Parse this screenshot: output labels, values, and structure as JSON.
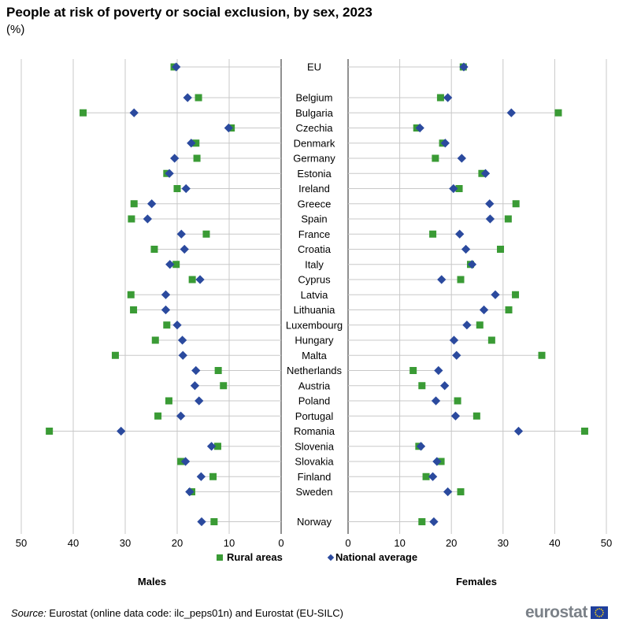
{
  "title": "People at risk of poverty or social exclusion, by sex, 2023",
  "subtitle": "(%)",
  "source": {
    "label": "Source:",
    "text": " Eurostat (online data code: ilc_peps01n) and Eurostat (EU-SILC)"
  },
  "logo": {
    "text": "eurostat"
  },
  "colors": {
    "rural": "#3a9b35",
    "national": "#2b4a9e",
    "grid": "#c8c8c8",
    "divider": "#555555"
  },
  "chart_data": {
    "type": "scatter",
    "legend": {
      "rural": "Rural areas",
      "national": "National average"
    },
    "panels": [
      {
        "key": "males",
        "label": "Males",
        "xlim": [
          0,
          50
        ],
        "direction": "reversed",
        "ticks": [
          50,
          40,
          30,
          20,
          10,
          0
        ]
      },
      {
        "key": "females",
        "label": "Females",
        "xlim": [
          0,
          50
        ],
        "direction": "normal",
        "ticks": [
          0,
          10,
          20,
          30,
          40,
          50
        ]
      }
    ],
    "countries": [
      {
        "name": "EU",
        "gap_after": true,
        "males": {
          "rural": 20.6,
          "national": 20.2
        },
        "females": {
          "rural": 22.3,
          "national": 22.4
        }
      },
      {
        "name": "Belgium",
        "males": {
          "rural": 15.9,
          "national": 18.0
        },
        "females": {
          "rural": 17.9,
          "national": 19.3
        }
      },
      {
        "name": "Bulgaria",
        "males": {
          "rural": 38.1,
          "national": 28.3
        },
        "females": {
          "rural": 40.7,
          "national": 31.6
        }
      },
      {
        "name": "Czechia",
        "males": {
          "rural": 9.6,
          "national": 10.1
        },
        "females": {
          "rural": 13.3,
          "national": 13.9
        }
      },
      {
        "name": "Denmark",
        "males": {
          "rural": 16.4,
          "national": 17.3
        },
        "females": {
          "rural": 18.3,
          "national": 18.8
        }
      },
      {
        "name": "Germany",
        "males": {
          "rural": 16.2,
          "national": 20.5
        },
        "females": {
          "rural": 16.9,
          "national": 22.0
        }
      },
      {
        "name": "Estonia",
        "males": {
          "rural": 22.0,
          "national": 21.5
        },
        "females": {
          "rural": 25.9,
          "national": 26.6
        }
      },
      {
        "name": "Ireland",
        "males": {
          "rural": 20.0,
          "national": 18.3
        },
        "females": {
          "rural": 21.5,
          "national": 20.4
        }
      },
      {
        "name": "Greece",
        "males": {
          "rural": 28.3,
          "national": 24.9
        },
        "females": {
          "rural": 32.5,
          "national": 27.4
        }
      },
      {
        "name": "Spain",
        "males": {
          "rural": 28.8,
          "national": 25.7
        },
        "females": {
          "rural": 31.0,
          "national": 27.5
        }
      },
      {
        "name": "France",
        "males": {
          "rural": 14.4,
          "national": 19.2
        },
        "females": {
          "rural": 16.4,
          "national": 21.6
        }
      },
      {
        "name": "Croatia",
        "males": {
          "rural": 24.4,
          "national": 18.6
        },
        "females": {
          "rural": 29.5,
          "national": 22.8
        }
      },
      {
        "name": "Italy",
        "males": {
          "rural": 20.2,
          "national": 21.4
        },
        "females": {
          "rural": 23.7,
          "national": 24.0
        }
      },
      {
        "name": "Cyprus",
        "males": {
          "rural": 17.1,
          "national": 15.6
        },
        "females": {
          "rural": 21.8,
          "national": 18.1
        }
      },
      {
        "name": "Latvia",
        "males": {
          "rural": 28.9,
          "national": 22.2
        },
        "females": {
          "rural": 32.4,
          "national": 28.5
        }
      },
      {
        "name": "Lithuania",
        "males": {
          "rural": 28.4,
          "national": 22.2
        },
        "females": {
          "rural": 31.1,
          "national": 26.3
        }
      },
      {
        "name": "Luxembourg",
        "males": {
          "rural": 22.0,
          "national": 20.0
        },
        "females": {
          "rural": 25.5,
          "national": 23.0
        }
      },
      {
        "name": "Hungary",
        "males": {
          "rural": 24.2,
          "national": 19.0
        },
        "females": {
          "rural": 27.8,
          "national": 20.5
        }
      },
      {
        "name": "Malta",
        "males": {
          "rural": 31.9,
          "national": 18.9
        },
        "females": {
          "rural": 37.5,
          "national": 21.0
        }
      },
      {
        "name": "Netherlands",
        "males": {
          "rural": 12.1,
          "national": 16.4
        },
        "females": {
          "rural": 12.6,
          "national": 17.5
        }
      },
      {
        "name": "Austria",
        "males": {
          "rural": 11.1,
          "national": 16.6
        },
        "females": {
          "rural": 14.3,
          "national": 18.7
        }
      },
      {
        "name": "Poland",
        "males": {
          "rural": 21.6,
          "national": 15.8
        },
        "females": {
          "rural": 21.2,
          "national": 17.0
        }
      },
      {
        "name": "Portugal",
        "males": {
          "rural": 23.7,
          "national": 19.3
        },
        "females": {
          "rural": 24.9,
          "national": 20.8
        }
      },
      {
        "name": "Romania",
        "males": {
          "rural": 44.6,
          "national": 30.8
        },
        "females": {
          "rural": 45.8,
          "national": 33.0
        }
      },
      {
        "name": "Slovenia",
        "males": {
          "rural": 12.2,
          "national": 13.4
        },
        "females": {
          "rural": 13.7,
          "national": 14.1
        }
      },
      {
        "name": "Slovakia",
        "males": {
          "rural": 19.3,
          "national": 18.4
        },
        "females": {
          "rural": 18.0,
          "national": 17.2
        }
      },
      {
        "name": "Finland",
        "males": {
          "rural": 13.1,
          "national": 15.4
        },
        "females": {
          "rural": 15.1,
          "national": 16.4
        }
      },
      {
        "name": "Sweden",
        "males": {
          "rural": 17.2,
          "national": 17.6
        },
        "females": {
          "rural": 21.8,
          "national": 19.3
        },
        "gap_after": true
      },
      {
        "name": "Norway",
        "males": {
          "rural": 12.9,
          "national": 15.3
        },
        "females": {
          "rural": 14.3,
          "national": 16.6
        }
      }
    ]
  }
}
